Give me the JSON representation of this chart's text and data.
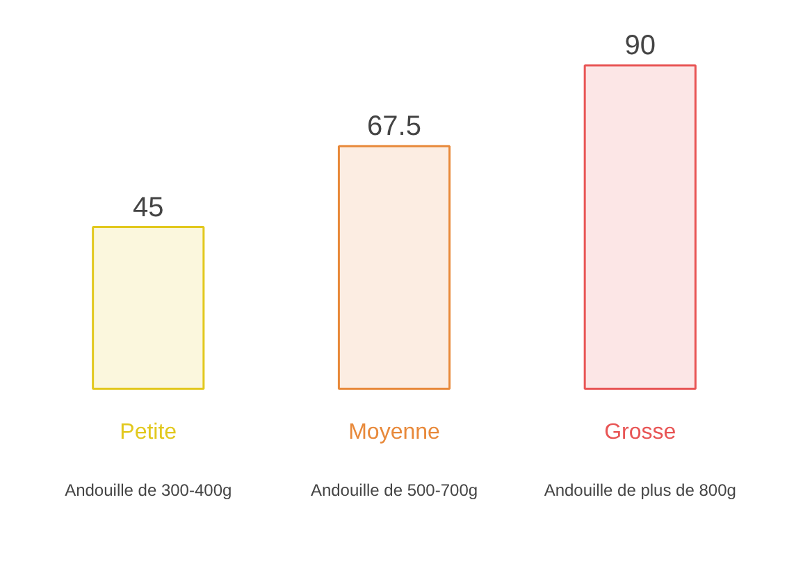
{
  "chart_data": {
    "type": "bar",
    "categories": [
      "Petite",
      "Moyenne",
      "Grosse"
    ],
    "values": [
      45,
      67.5,
      90
    ],
    "colors": [
      "#e2c81e",
      "#e8893a",
      "#e85555"
    ],
    "data_labels": true,
    "grid": false,
    "annotations": [
      "Andouille de 300-400g",
      "Andouille de 500-700g",
      "Andouille de plus de 800g"
    ]
  }
}
